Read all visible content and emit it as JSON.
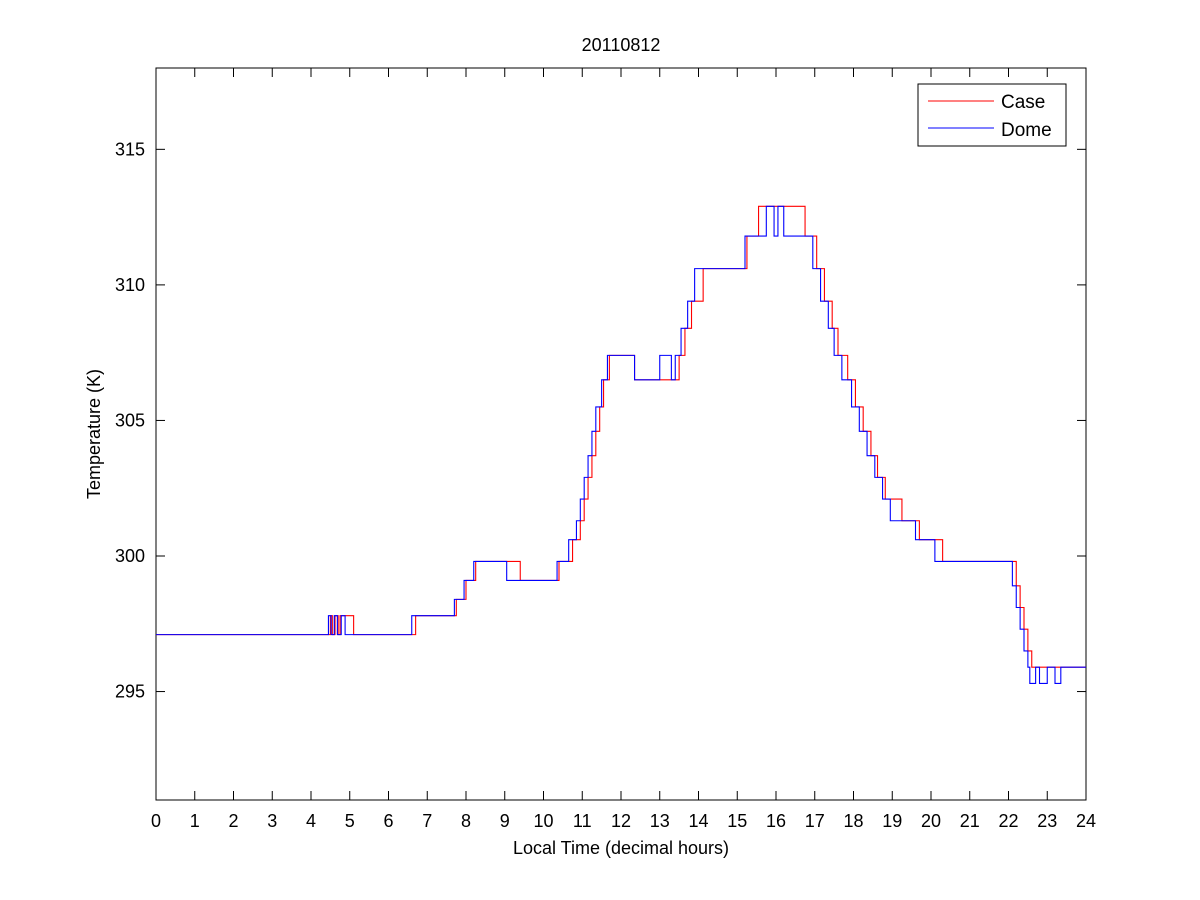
{
  "chart_data": {
    "type": "line",
    "title": "20110812",
    "xlabel": "Local Time (decimal hours)",
    "ylabel": "Temperature (K)",
    "xlim": [
      0,
      24
    ],
    "ylim": [
      291,
      318
    ],
    "xticks": [
      0,
      1,
      2,
      3,
      4,
      5,
      6,
      7,
      8,
      9,
      10,
      11,
      12,
      13,
      14,
      15,
      16,
      17,
      18,
      19,
      20,
      21,
      22,
      23,
      24
    ],
    "xtick_labels": [
      "0",
      "1",
      "2",
      "3",
      "4",
      "5",
      "6",
      "7",
      "8",
      "9",
      "10",
      "11",
      "12",
      "13",
      "14",
      "15",
      "16",
      "17",
      "18",
      "19",
      "20",
      "21",
      "22",
      "23",
      "24"
    ],
    "yticks": [
      295,
      300,
      305,
      310,
      315
    ],
    "ytick_labels": [
      "295",
      "300",
      "305",
      "310",
      "315"
    ],
    "grid": false,
    "legend_position": "top-right",
    "series": [
      {
        "name": "Case",
        "color": "#ff0000",
        "step": true,
        "x": [
          0,
          4.5,
          4.55,
          4.62,
          4.7,
          4.75,
          4.85,
          4.95,
          5.1,
          6.7,
          7.75,
          8.0,
          8.25,
          8.6,
          9.4,
          10.4,
          10.75,
          10.95,
          11.05,
          11.15,
          11.25,
          11.35,
          11.45,
          11.55,
          11.7,
          11.85,
          12.05,
          12.35,
          13.15,
          13.5,
          13.65,
          13.82,
          13.95,
          14.12,
          14.35,
          14.55,
          15.25,
          15.55,
          15.8,
          16.75,
          17.05,
          17.25,
          17.45,
          17.6,
          17.85,
          18.05,
          18.25,
          18.45,
          18.62,
          18.82,
          19.05,
          19.25,
          19.45,
          19.7,
          20.3,
          22.2,
          22.3,
          22.4,
          22.5,
          22.6,
          22.7,
          22.85,
          24
        ],
        "y": [
          297.1,
          297.8,
          297.1,
          297.8,
          297.1,
          297.8,
          297.8,
          297.8,
          297.1,
          297.8,
          298.4,
          299.1,
          299.8,
          299.8,
          299.1,
          299.8,
          300.6,
          301.3,
          302.1,
          302.9,
          303.7,
          304.6,
          305.5,
          306.5,
          307.4,
          307.4,
          307.4,
          306.5,
          306.5,
          307.4,
          308.4,
          309.4,
          309.4,
          310.6,
          310.6,
          310.6,
          311.8,
          312.9,
          312.9,
          311.8,
          310.6,
          309.4,
          308.4,
          307.4,
          306.5,
          305.5,
          304.6,
          303.7,
          302.9,
          302.1,
          302.1,
          301.3,
          301.3,
          300.6,
          299.8,
          298.9,
          298.1,
          297.3,
          296.5,
          295.9,
          295.9,
          295.9,
          295.9
        ]
      },
      {
        "name": "Dome",
        "color": "#0000ff",
        "step": true,
        "x": [
          0,
          4.45,
          4.52,
          4.6,
          4.68,
          4.78,
          4.88,
          6.6,
          7.7,
          7.95,
          8.2,
          8.55,
          9.05,
          9.15,
          10.35,
          10.65,
          10.85,
          10.95,
          11.05,
          11.15,
          11.25,
          11.35,
          11.5,
          11.65,
          12.35,
          13.0,
          13.3,
          13.4,
          13.55,
          13.72,
          13.9,
          14.05,
          14.3,
          14.5,
          15.2,
          15.5,
          15.75,
          15.95,
          16.05,
          16.12,
          16.2,
          16.28,
          16.4,
          16.95,
          17.15,
          17.35,
          17.5,
          17.7,
          17.95,
          18.15,
          18.35,
          18.55,
          18.75,
          18.95,
          19.15,
          19.35,
          19.6,
          20.1,
          22.1,
          22.2,
          22.3,
          22.4,
          22.5,
          22.55,
          22.6,
          22.7,
          22.8,
          23.0,
          23.2,
          23.35,
          24
        ],
        "y": [
          297.1,
          297.8,
          297.1,
          297.8,
          297.1,
          297.8,
          297.1,
          297.8,
          298.4,
          299.1,
          299.8,
          299.8,
          299.1,
          299.1,
          299.8,
          300.6,
          301.3,
          302.1,
          302.9,
          303.7,
          304.6,
          305.5,
          306.5,
          307.4,
          306.5,
          307.4,
          306.5,
          307.4,
          308.4,
          309.4,
          310.6,
          310.6,
          310.6,
          310.6,
          311.8,
          311.8,
          312.9,
          311.8,
          312.9,
          312.9,
          311.8,
          311.8,
          311.8,
          310.6,
          309.4,
          308.4,
          307.4,
          306.5,
          305.5,
          304.6,
          303.7,
          302.9,
          302.1,
          301.3,
          301.3,
          301.3,
          300.6,
          299.8,
          298.9,
          298.1,
          297.3,
          296.5,
          295.9,
          295.3,
          295.3,
          295.9,
          295.3,
          295.9,
          295.3,
          295.9,
          295.9
        ]
      }
    ]
  }
}
